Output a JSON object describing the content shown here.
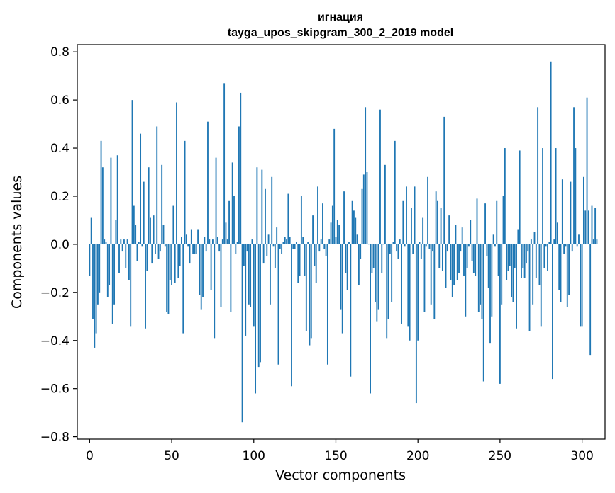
{
  "chart_data": {
    "type": "bar",
    "title": "игнация",
    "subtitle": "tayga_upos_skipgram_300_2_2019 model",
    "xlabel": "Vector components",
    "ylabel": "Components values",
    "xlim": [
      -7.5,
      314
    ],
    "ylim": [
      -0.81,
      0.83
    ],
    "xticks": [
      0,
      50,
      100,
      150,
      200,
      250,
      300
    ],
    "yticks": [
      -0.8,
      -0.6,
      -0.4,
      -0.2,
      0.0,
      0.2,
      0.4,
      0.6,
      0.8
    ],
    "xtick_labels": [
      "0",
      "50",
      "100",
      "150",
      "200",
      "250",
      "300"
    ],
    "ytick_labels": [
      "−0.8",
      "−0.6",
      "−0.4",
      "−0.2",
      "0.0",
      "0.2",
      "0.4",
      "0.6",
      "0.8"
    ],
    "bar_color": "#1f77b4",
    "grid": false,
    "values": [
      -0.13,
      0.11,
      -0.31,
      -0.43,
      -0.37,
      -0.25,
      -0.2,
      0.43,
      0.32,
      0.02,
      0.01,
      -0.22,
      -0.17,
      0.36,
      -0.33,
      -0.25,
      0.1,
      0.37,
      -0.12,
      0.02,
      -0.03,
      0.02,
      -0.1,
      0.02,
      -0.15,
      -0.34,
      0.6,
      0.16,
      0.08,
      -0.07,
      0.01,
      0.46,
      -0.01,
      0.26,
      -0.35,
      -0.11,
      0.32,
      0.11,
      -0.08,
      0.12,
      -0.04,
      0.49,
      -0.06,
      -0.03,
      0.33,
      0.08,
      -0.01,
      -0.28,
      -0.29,
      -0.15,
      -0.17,
      0.16,
      -0.16,
      0.59,
      -0.14,
      -0.09,
      0.03,
      -0.37,
      0.43,
      0.04,
      -0.01,
      -0.08,
      0.06,
      -0.04,
      -0.04,
      -0.04,
      0.06,
      -0.21,
      -0.27,
      -0.22,
      0.03,
      -0.03,
      0.51,
      0.02,
      -0.19,
      0.02,
      -0.39,
      0.36,
      0.03,
      -0.03,
      -0.26,
      0.02,
      0.67,
      0.09,
      0.02,
      0.18,
      -0.28,
      0.34,
      0.2,
      -0.04,
      0.01,
      0.49,
      0.63,
      -0.74,
      -0.09,
      -0.38,
      -0.03,
      -0.25,
      -0.26,
      0.02,
      -0.34,
      -0.62,
      0.32,
      -0.51,
      -0.49,
      0.31,
      -0.08,
      0.23,
      -0.05,
      0.04,
      -0.25,
      0.28,
      -0.01,
      -0.1,
      0.07,
      -0.5,
      -0.02,
      -0.04,
      0.01,
      0.03,
      0.02,
      0.21,
      0.03,
      -0.59,
      -0.02,
      -0.02,
      0.01,
      -0.16,
      -0.13,
      0.2,
      0.03,
      -0.13,
      -0.36,
      0.01,
      -0.42,
      -0.39,
      0.12,
      -0.09,
      -0.16,
      0.24,
      -0.03,
      0.02,
      0.17,
      -0.02,
      -0.05,
      -0.5,
      0.02,
      0.09,
      0.16,
      0.48,
      0.03,
      0.1,
      0.08,
      -0.27,
      -0.37,
      0.22,
      -0.12,
      -0.19,
      0.01,
      -0.55,
      0.18,
      0.14,
      0.11,
      0.04,
      -0.17,
      -0.06,
      0.23,
      0.29,
      0.57,
      0.3,
      0.0,
      -0.62,
      -0.12,
      -0.1,
      -0.24,
      -0.32,
      -0.27,
      0.56,
      -0.12,
      0.0,
      0.33,
      -0.39,
      -0.31,
      -0.04,
      -0.24,
      0.01,
      0.43,
      -0.03,
      -0.06,
      0.02,
      -0.33,
      0.18,
      -0.01,
      0.24,
      -0.34,
      -0.4,
      0.15,
      -0.04,
      0.24,
      -0.66,
      -0.4,
      0.01,
      -0.06,
      0.11,
      -0.28,
      -0.01,
      0.28,
      -0.02,
      -0.25,
      -0.03,
      -0.31,
      0.22,
      0.18,
      -0.1,
      0.15,
      -0.11,
      0.53,
      -0.18,
      -0.03,
      0.12,
      -0.15,
      -0.22,
      -0.17,
      0.08,
      -0.15,
      -0.12,
      -0.03,
      0.07,
      -0.13,
      -0.3,
      -0.1,
      -0.01,
      0.1,
      -0.07,
      -0.12,
      -0.13,
      0.19,
      -0.28,
      -0.25,
      -0.31,
      -0.57,
      0.17,
      -0.05,
      -0.18,
      -0.41,
      -0.3,
      0.04,
      -0.01,
      0.18,
      -0.13,
      -0.58,
      -0.25,
      0.2,
      0.4,
      -0.15,
      -0.11,
      -0.09,
      -0.22,
      -0.24,
      -0.1,
      -0.35,
      0.06,
      0.39,
      -0.14,
      -0.1,
      -0.14,
      -0.08,
      -0.03,
      -0.36,
      0.02,
      -0.25,
      0.05,
      -0.14,
      0.57,
      -0.17,
      -0.34,
      0.4,
      -0.1,
      -0.01,
      -0.11,
      0.01,
      0.76,
      -0.56,
      0.02,
      0.4,
      0.09,
      -0.19,
      -0.24,
      0.27,
      -0.04,
      -0.01,
      -0.26,
      -0.21,
      0.26,
      -0.03,
      0.57,
      0.4,
      -0.01,
      0.04,
      -0.34,
      -0.34,
      0.28,
      0.14,
      0.61,
      0.14,
      -0.46,
      0.16,
      0.02,
      0.15,
      0.02
    ]
  }
}
